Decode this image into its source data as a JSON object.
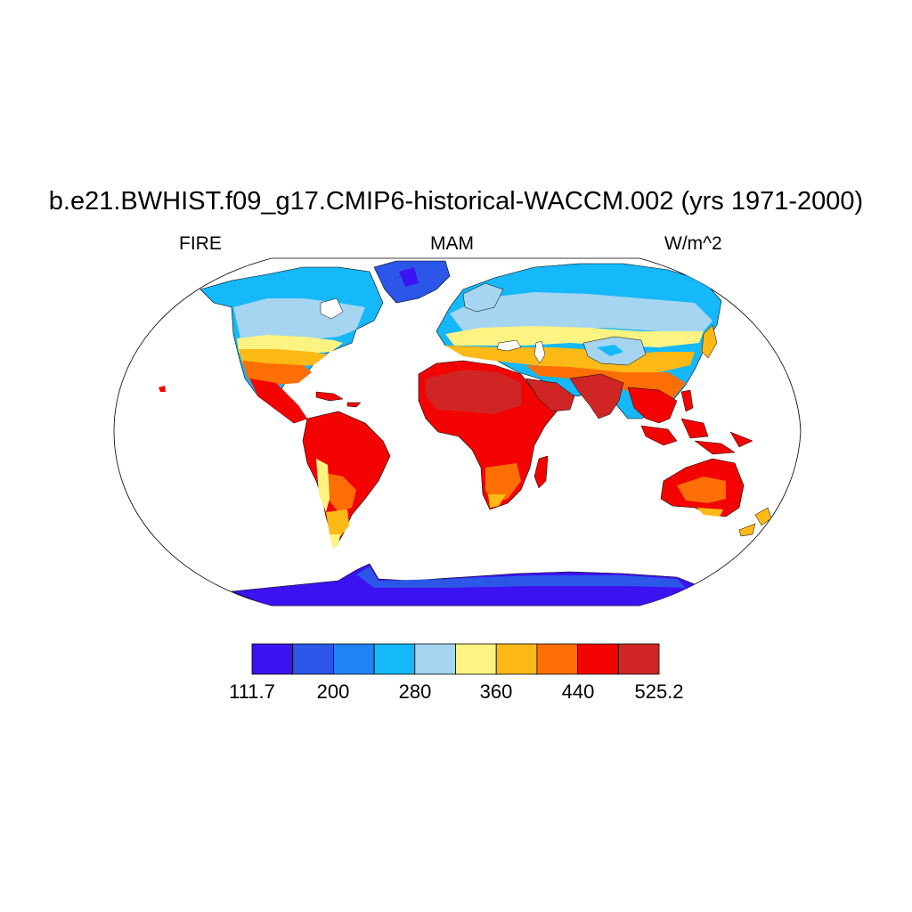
{
  "title": "b.e21.BWHIST.f09_g17.CMIP6-historical-WACCM.002 (yrs 1971-2000)",
  "subtitle": {
    "left": "FIRE",
    "center": "MAM",
    "right": "W/m^2"
  },
  "colorbar": {
    "colors": [
      "#3c12f0",
      "#2c56e8",
      "#2184f5",
      "#15b8f8",
      "#a5d5f1",
      "#fcf382",
      "#fdb916",
      "#fd6f05",
      "#f40303",
      "#d02525"
    ],
    "labels": [
      "111.7",
      "200",
      "280",
      "360",
      "440",
      "525.2"
    ]
  },
  "colors": {
    "land_outline": "#000000",
    "ocean": "#ffffff"
  }
}
